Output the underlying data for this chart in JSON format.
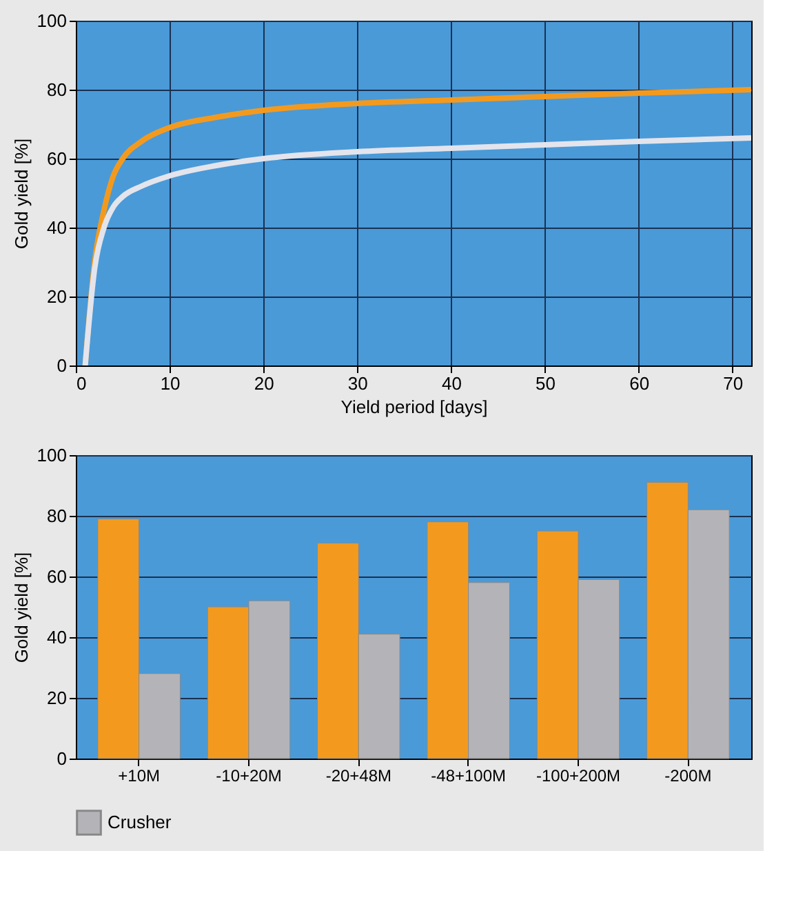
{
  "chart_data": [
    {
      "type": "line",
      "ylabel": "Gold yield [%]",
      "xlabel": "Yield period [days]",
      "xlim": [
        0,
        72
      ],
      "xticks": [
        0,
        10,
        20,
        30,
        40,
        50,
        60,
        70
      ],
      "ylim": [
        0,
        100
      ],
      "yticks": [
        0,
        20,
        40,
        60,
        80,
        100
      ],
      "grid": true,
      "marker": "none",
      "line_style": "solid",
      "series": [
        {
          "color": "#f39a1e",
          "x": [
            1,
            2,
            3,
            4,
            5,
            7,
            10,
            15,
            20,
            30,
            40,
            50,
            60,
            72
          ],
          "values": [
            0,
            30,
            45,
            55,
            60,
            65,
            69,
            72,
            74,
            76,
            77,
            78,
            79,
            80
          ]
        },
        {
          "color": "#e4e4ec",
          "x": [
            1,
            2,
            3,
            4,
            5,
            7,
            10,
            15,
            20,
            30,
            40,
            50,
            60,
            72
          ],
          "values": [
            0,
            28,
            40,
            46,
            49,
            52,
            55,
            58,
            60,
            62,
            63,
            64,
            65,
            66
          ]
        }
      ]
    },
    {
      "type": "bar",
      "ylabel": "Gold yield [%]",
      "categories": [
        "+10M",
        "-10+20M",
        "-20+48M",
        "-48+100M",
        "-100+200M",
        "-200M"
      ],
      "ylim": [
        0,
        100
      ],
      "yticks": [
        0,
        20,
        40,
        60,
        80,
        100
      ],
      "grid": "y",
      "legend": "bottom",
      "series": [
        {
          "color": "#f39a1e",
          "values": [
            79,
            50,
            71,
            78,
            75,
            91
          ]
        },
        {
          "name": "Crusher",
          "color": "#b4b4b8",
          "values": [
            28,
            52,
            41,
            58,
            59,
            82
          ]
        }
      ]
    }
  ]
}
